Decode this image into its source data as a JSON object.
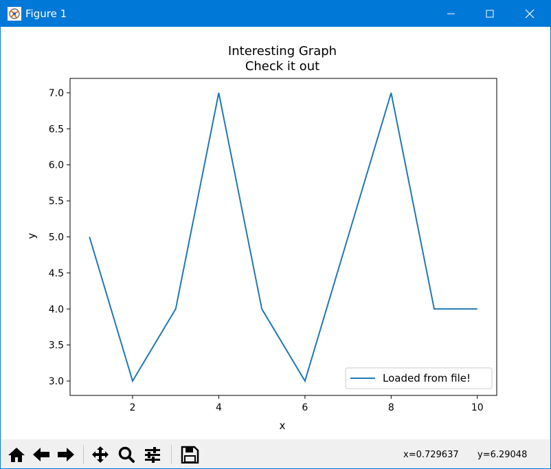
{
  "window": {
    "title": "Figure 1",
    "titlebar_color": "#0078d7"
  },
  "toolbar": {
    "buttons": [
      "home-icon",
      "back-arrow-icon",
      "forward-arrow-icon",
      "pan-icon",
      "zoom-icon",
      "configure-subplots-icon",
      "save-icon"
    ],
    "coord_x": "x=0.729637",
    "coord_y": "y=6.29048"
  },
  "chart_data": {
    "type": "line",
    "title": "Interesting Graph",
    "subtitle": "Check it out",
    "xlabel": "x",
    "ylabel": "y",
    "x": [
      1,
      2,
      3,
      4,
      5,
      6,
      7,
      8,
      9,
      10
    ],
    "series": [
      {
        "name": "Loaded from file!",
        "values": [
          5,
          3,
          4,
          7,
          4,
          3,
          5,
          7,
          4,
          4
        ],
        "color": "#1f77b4"
      }
    ],
    "xlim": [
      0.55,
      10.45
    ],
    "ylim": [
      2.8,
      7.2
    ],
    "xticks": [
      "2",
      "4",
      "6",
      "8",
      "10"
    ],
    "yticks": [
      "3.0",
      "3.5",
      "4.0",
      "4.5",
      "5.0",
      "5.5",
      "6.0",
      "6.5",
      "7.0"
    ],
    "grid": false,
    "legend": "lower right"
  }
}
